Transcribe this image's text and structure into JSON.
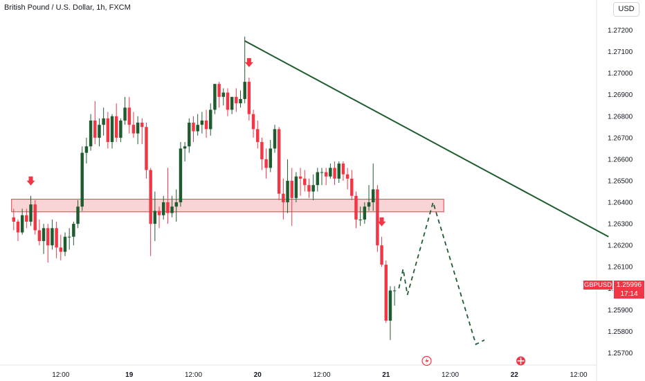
{
  "header": {
    "title": "British Pound / U.S. Dollar, 1h, FXCM",
    "currency": "USD"
  },
  "price_tag": {
    "symbol": "GBPUSD",
    "price": "1.25996",
    "countdown": "17:14"
  },
  "colors": {
    "up": "#1e5b2e",
    "down": "#f23645",
    "trend": "#1e5b2e",
    "zone_fill": "#f7c5c8",
    "zone_stroke": "#f23645",
    "projection": "#1e5b2e"
  },
  "chart_data": {
    "type": "candlestick",
    "title": "British Pound / U.S. Dollar, 1h, FXCM",
    "ylim": [
      1.2565,
      1.2725
    ],
    "y_ticks": [
      "1.27200",
      "1.27100",
      "1.27000",
      "1.26900",
      "1.26800",
      "1.26700",
      "1.26600",
      "1.26500",
      "1.26400",
      "1.26300",
      "1.26200",
      "1.26100",
      "1.26000",
      "1.25900",
      "1.25800",
      "1.25700"
    ],
    "x_ticks": [
      {
        "label": "12:00",
        "bar": 11,
        "bold": false
      },
      {
        "label": "19",
        "bar": 27,
        "bold": true
      },
      {
        "label": "12:00",
        "bar": 42,
        "bold": false
      },
      {
        "label": "20",
        "bar": 57,
        "bold": true
      },
      {
        "label": "12:00",
        "bar": 72,
        "bold": false
      },
      {
        "label": "21",
        "bar": 87,
        "bold": true
      },
      {
        "label": "12:00",
        "bar": 102,
        "bold": false
      },
      {
        "label": "22",
        "bar": 117,
        "bold": true
      },
      {
        "label": "12:00",
        "bar": 132,
        "bold": false
      }
    ],
    "candles": [
      [
        1.2633,
        1.2637,
        1.2627,
        1.2631
      ],
      [
        1.2631,
        1.2632,
        1.2622,
        1.2626
      ],
      [
        1.2626,
        1.2637,
        1.2625,
        1.2634
      ],
      [
        1.2634,
        1.2637,
        1.2628,
        1.2631
      ],
      [
        1.2631,
        1.2643,
        1.2629,
        1.2639
      ],
      [
        1.2639,
        1.2641,
        1.2625,
        1.2627
      ],
      [
        1.2627,
        1.2632,
        1.262,
        1.2622
      ],
      [
        1.2622,
        1.263,
        1.2616,
        1.2628
      ],
      [
        1.2628,
        1.263,
        1.2612,
        1.262
      ],
      [
        1.262,
        1.2632,
        1.2618,
        1.2628
      ],
      [
        1.2628,
        1.2631,
        1.2614,
        1.2619
      ],
      [
        1.2619,
        1.2625,
        1.2613,
        1.2617
      ],
      [
        1.2617,
        1.2626,
        1.2615,
        1.2624
      ],
      [
        1.2624,
        1.2628,
        1.2618,
        1.2624
      ],
      [
        1.2624,
        1.2631,
        1.262,
        1.263
      ],
      [
        1.263,
        1.2641,
        1.2628,
        1.2638
      ],
      [
        1.2638,
        1.2666,
        1.2636,
        1.2663
      ],
      [
        1.2663,
        1.267,
        1.2658,
        1.2666
      ],
      [
        1.2666,
        1.2681,
        1.2664,
        1.2678
      ],
      [
        1.2678,
        1.2687,
        1.2667,
        1.267
      ],
      [
        1.267,
        1.2679,
        1.2666,
        1.2676
      ],
      [
        1.2676,
        1.2684,
        1.2671,
        1.2679
      ],
      [
        1.2679,
        1.2682,
        1.2665,
        1.2668
      ],
      [
        1.2668,
        1.2681,
        1.2665,
        1.268
      ],
      [
        1.268,
        1.2686,
        1.2668,
        1.267
      ],
      [
        1.267,
        1.2679,
        1.2668,
        1.2678
      ],
      [
        1.2678,
        1.2689,
        1.2676,
        1.2684
      ],
      [
        1.2684,
        1.2689,
        1.2672,
        1.2676
      ],
      [
        1.2676,
        1.2682,
        1.267,
        1.2672
      ],
      [
        1.2672,
        1.268,
        1.2667,
        1.2677
      ],
      [
        1.2677,
        1.2679,
        1.2667,
        1.2675
      ],
      [
        1.2675,
        1.2677,
        1.2651,
        1.2655
      ],
      [
        1.2655,
        1.2656,
        1.2615,
        1.263
      ],
      [
        1.263,
        1.2645,
        1.2622,
        1.2636
      ],
      [
        1.2636,
        1.2638,
        1.2628,
        1.2634
      ],
      [
        1.2634,
        1.2643,
        1.2632,
        1.264
      ],
      [
        1.264,
        1.2656,
        1.263,
        1.2635
      ],
      [
        1.2635,
        1.2643,
        1.2633,
        1.2638
      ],
      [
        1.2638,
        1.2646,
        1.2631,
        1.264
      ],
      [
        1.264,
        1.2668,
        1.2638,
        1.2665
      ],
      [
        1.2665,
        1.2668,
        1.2659,
        1.2666
      ],
      [
        1.2666,
        1.2679,
        1.2663,
        1.2677
      ],
      [
        1.2677,
        1.268,
        1.2668,
        1.2673
      ],
      [
        1.2673,
        1.2681,
        1.2671,
        1.2676
      ],
      [
        1.2676,
        1.2682,
        1.2672,
        1.2678
      ],
      [
        1.2678,
        1.2683,
        1.267,
        1.2674
      ],
      [
        1.2674,
        1.2686,
        1.2671,
        1.2683
      ],
      [
        1.2683,
        1.2695,
        1.2681,
        1.2695
      ],
      [
        1.2695,
        1.2696,
        1.2684,
        1.2689
      ],
      [
        1.2689,
        1.2693,
        1.2685,
        1.2691
      ],
      [
        1.2691,
        1.2693,
        1.268,
        1.2683
      ],
      [
        1.2683,
        1.2689,
        1.2681,
        1.2689
      ],
      [
        1.2689,
        1.2693,
        1.2682,
        1.2686
      ],
      [
        1.2686,
        1.2692,
        1.2684,
        1.2688
      ],
      [
        1.2688,
        1.2717,
        1.2686,
        1.2696
      ],
      [
        1.2696,
        1.2698,
        1.2678,
        1.2681
      ],
      [
        1.2681,
        1.2683,
        1.267,
        1.2674
      ],
      [
        1.2674,
        1.2678,
        1.2665,
        1.2668
      ],
      [
        1.2668,
        1.267,
        1.2655,
        1.266
      ],
      [
        1.266,
        1.2665,
        1.2651,
        1.2656
      ],
      [
        1.2656,
        1.2669,
        1.2654,
        1.2665
      ],
      [
        1.2665,
        1.2676,
        1.2663,
        1.2674
      ],
      [
        1.2674,
        1.2675,
        1.2641,
        1.2644
      ],
      [
        1.2644,
        1.2651,
        1.2632,
        1.264
      ],
      [
        1.264,
        1.266,
        1.2635,
        1.265
      ],
      [
        1.265,
        1.2656,
        1.2629,
        1.2642
      ],
      [
        1.2642,
        1.2654,
        1.264,
        1.2652
      ],
      [
        1.2652,
        1.2656,
        1.2643,
        1.2651
      ],
      [
        1.2651,
        1.2655,
        1.2645,
        1.2648
      ],
      [
        1.2648,
        1.2651,
        1.2642,
        1.2645
      ],
      [
        1.2645,
        1.2653,
        1.2641,
        1.2648
      ],
      [
        1.2648,
        1.2656,
        1.2645,
        1.2654
      ],
      [
        1.2654,
        1.2656,
        1.2648,
        1.2654
      ],
      [
        1.2654,
        1.2656,
        1.2648,
        1.2652
      ],
      [
        1.2652,
        1.2658,
        1.2651,
        1.2656
      ],
      [
        1.2656,
        1.2659,
        1.2648,
        1.2651
      ],
      [
        1.2651,
        1.2659,
        1.2649,
        1.2658
      ],
      [
        1.2658,
        1.2659,
        1.265,
        1.2653
      ],
      [
        1.2653,
        1.2656,
        1.2646,
        1.2651
      ],
      [
        1.2651,
        1.2655,
        1.2641,
        1.2643
      ],
      [
        1.2643,
        1.2645,
        1.2628,
        1.2632
      ],
      [
        1.2632,
        1.2638,
        1.2629,
        1.2632
      ],
      [
        1.2632,
        1.264,
        1.263,
        1.2638
      ],
      [
        1.2638,
        1.2648,
        1.2636,
        1.264
      ],
      [
        1.264,
        1.2658,
        1.2636,
        1.2646
      ],
      [
        1.2646,
        1.2648,
        1.2617,
        1.262
      ],
      [
        1.262,
        1.2624,
        1.261,
        1.2611
      ],
      [
        1.2611,
        1.2613,
        1.2584,
        1.2585
      ],
      [
        1.2585,
        1.2601,
        1.2576,
        1.2599
      ],
      [
        1.2599,
        1.2601,
        1.2592,
        1.2599
      ]
    ],
    "resistance_zone": [
      1.26375,
      1.26395
    ],
    "trendline": [
      {
        "bar": 54,
        "price": 1.2715
      },
      {
        "bar": 139,
        "price": 1.2624
      }
    ],
    "projection": [
      {
        "bar": 90,
        "price": 1.26
      },
      {
        "bar": 91,
        "price": 1.2609
      },
      {
        "bar": 92,
        "price": 1.2597
      },
      {
        "bar": 98,
        "price": 1.264
      },
      {
        "bar": 108,
        "price": 1.2574
      },
      {
        "bar": 110,
        "price": 1.2576
      }
    ],
    "markers": [
      {
        "bar": 4,
        "label": "down-arrow"
      },
      {
        "bar": 55,
        "label": "down-arrow"
      },
      {
        "bar": 86,
        "label": "down-arrow"
      }
    ],
    "x_domain": [
      -3.2,
      136.2
    ]
  }
}
